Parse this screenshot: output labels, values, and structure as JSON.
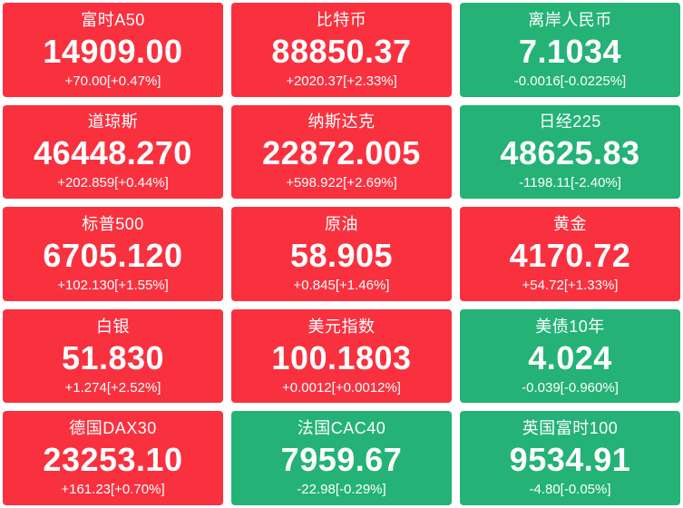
{
  "page": {
    "background": "#ffffff"
  },
  "colors": {
    "up": "#f9313f",
    "down": "#24b276",
    "text": "#ffffff"
  },
  "tiles": [
    {
      "name": "富时A50",
      "price": "14909.00",
      "change": "+70.00[+0.47%]",
      "direction": "up"
    },
    {
      "name": "比特币",
      "price": "88850.37",
      "change": "+2020.37[+2.33%]",
      "direction": "up"
    },
    {
      "name": "离岸人民币",
      "price": "7.1034",
      "change": "-0.0016[-0.0225%]",
      "direction": "down"
    },
    {
      "name": "道琼斯",
      "price": "46448.270",
      "change": "+202.859[+0.44%]",
      "direction": "up"
    },
    {
      "name": "纳斯达克",
      "price": "22872.005",
      "change": "+598.922[+2.69%]",
      "direction": "up"
    },
    {
      "name": "日经225",
      "price": "48625.83",
      "change": "-1198.11[-2.40%]",
      "direction": "down"
    },
    {
      "name": "标普500",
      "price": "6705.120",
      "change": "+102.130[+1.55%]",
      "direction": "up"
    },
    {
      "name": "原油",
      "price": "58.905",
      "change": "+0.845[+1.46%]",
      "direction": "up"
    },
    {
      "name": "黄金",
      "price": "4170.72",
      "change": "+54.72[+1.33%]",
      "direction": "up"
    },
    {
      "name": "白银",
      "price": "51.830",
      "change": "+1.274[+2.52%]",
      "direction": "up"
    },
    {
      "name": "美元指数",
      "price": "100.1803",
      "change": "+0.0012[+0.0012%]",
      "direction": "up"
    },
    {
      "name": "美债10年",
      "price": "4.024",
      "change": "-0.039[-0.960%]",
      "direction": "down"
    },
    {
      "name": "德国DAX30",
      "price": "23253.10",
      "change": "+161.23[+0.70%]",
      "direction": "up"
    },
    {
      "name": "法国CAC40",
      "price": "7959.67",
      "change": "-22.98[-0.29%]",
      "direction": "down"
    },
    {
      "name": "英国富时100",
      "price": "9534.91",
      "change": "-4.80[-0.05%]",
      "direction": "down"
    }
  ]
}
